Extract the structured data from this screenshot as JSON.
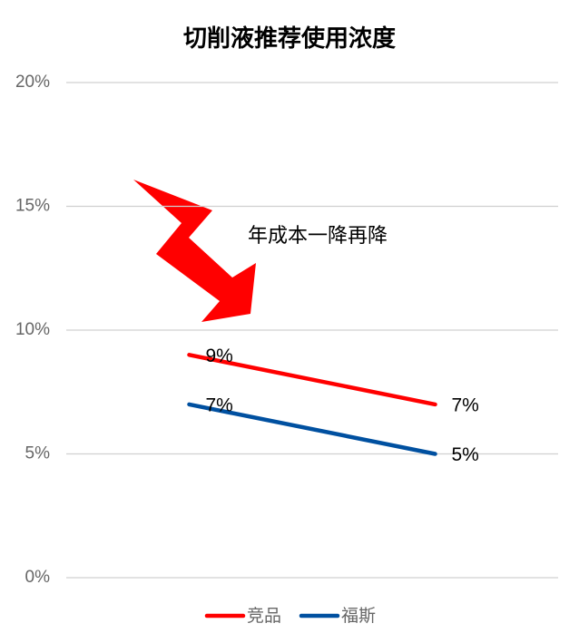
{
  "chart_data": {
    "type": "line",
    "title": "切削液推荐使用浓度",
    "categories": [
      null,
      null
    ],
    "series": [
      {
        "name": "竞品",
        "color": "#ff0000",
        "values": [
          9,
          7
        ],
        "value_labels": [
          "9%",
          "7%"
        ]
      },
      {
        "name": "福斯",
        "color": "#0050a0",
        "values": [
          7,
          5
        ],
        "value_labels": [
          "7%",
          "5%"
        ]
      }
    ],
    "ylim": [
      0,
      20
    ],
    "yticks": [
      {
        "value": 0,
        "label": "0%"
      },
      {
        "value": 5,
        "label": "5%"
      },
      {
        "value": 10,
        "label": "10%"
      },
      {
        "value": 15,
        "label": "15%"
      },
      {
        "value": 20,
        "label": "20%"
      }
    ],
    "grid": true,
    "legend": "bottom",
    "annotation": "年成本一降再降"
  }
}
